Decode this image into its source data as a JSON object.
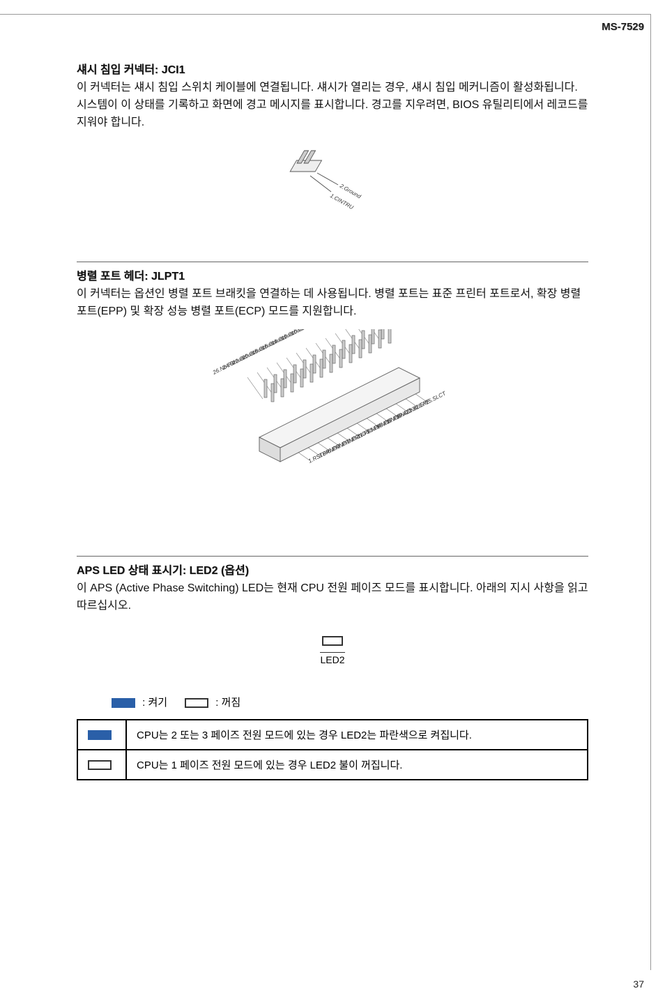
{
  "header": {
    "model": "MS-7529"
  },
  "sections": {
    "jci1": {
      "title": "섀시 침입 커넥터: JCI1",
      "body": "이 커넥터는 섀시 침입 스위치 케이블에 연결됩니다. 섀시가 열리는 경우, 섀시 침입 메커니즘이 활성화됩니다. 시스템이 이 상태를 기록하고 화면에 경고 메시지를 표시합니다. 경고를 지우려면, BIOS 유틸리티에서 레코드를 지워야 합니다.",
      "pins": [
        "2.Ground",
        "1.CINTRU"
      ]
    },
    "jlpt1": {
      "title": "병렬 포트 헤더: JLPT1",
      "body": "이 커넥터는 옵션인 병렬 포트 브래킷을 연결하는 데 사용됩니다. 병렬 포트는 표준 프린터 포트로서, 확장 병렬 포트(EPP) 및 확장 성능 병렬 포트(ECP) 모드를 지원합니다.",
      "pins_left": [
        "26.No Pin",
        "24.Ground",
        "22.Ground",
        "20.Ground",
        "18.Ground",
        "16.Ground",
        "14.Ground",
        "12.Ground",
        "10.Ground",
        "8.LPT_SLIN#",
        "6.PINIT#",
        "4.ERR#",
        "2.AFD#"
      ],
      "pins_right": [
        "25.SLCT",
        "23.PE",
        "21.BUSY",
        "19.ACK#",
        "17.PRND7",
        "15.PRND6",
        "13.PRND5",
        "11.PRND4",
        "9.PRND3",
        "7.PRND2",
        "5.PRND1",
        "3.PRND0",
        "1.RSTB#"
      ]
    },
    "led2": {
      "title": "APS LED 상태 표시기: LED2 (옵션)",
      "body": "이 APS (Active Phase Switching) LED는 현재 CPU 전원 페이즈 모드를 표시합니다. 아래의 지시 사항을 읽고 따르십시오.",
      "led_label": "LED2",
      "legend_on": ": 켜기",
      "legend_off": ": 꺼짐",
      "rows": [
        {
          "state": "on",
          "text": "CPU는 2 또는 3 페이즈 전원 모드에 있는 경우 LED2는 파란색으로 켜집니다."
        },
        {
          "state": "off",
          "text": "CPU는 1 페이즈 전원 모드에 있는 경우 LED2 불이 꺼집니다."
        }
      ]
    }
  },
  "colors": {
    "on": "#2a5fa8"
  },
  "page_number": "37"
}
